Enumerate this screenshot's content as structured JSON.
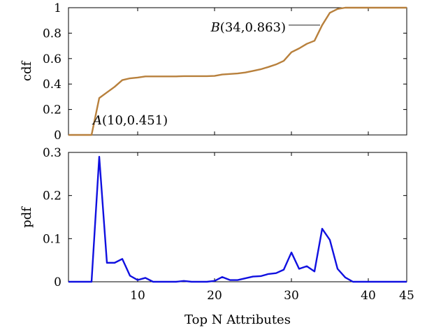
{
  "chart_data": [
    {
      "type": "line",
      "ylabel": "cdf",
      "xlim": [
        1,
        45
      ],
      "ylim": [
        0,
        1
      ],
      "xticks": [
        10,
        20,
        30,
        40,
        45
      ],
      "yticks": [
        0,
        0.2,
        0.4,
        0.6,
        0.8,
        1
      ],
      "ytick_labels": [
        "0",
        "0.2",
        "0.4",
        "0.6",
        "0.8",
        "1"
      ],
      "color": "#b8803c",
      "series": [
        {
          "x": [
            1,
            2,
            3,
            4,
            5,
            6,
            7,
            8,
            9,
            10,
            11,
            12,
            13,
            14,
            15,
            16,
            17,
            18,
            19,
            20,
            21,
            22,
            23,
            24,
            25,
            26,
            27,
            28,
            29,
            30,
            31,
            32,
            33,
            34,
            35,
            36,
            37,
            38,
            39,
            40,
            41,
            42,
            43,
            44,
            45
          ],
          "y": [
            0,
            0,
            0,
            0,
            0.29,
            0.334,
            0.378,
            0.431,
            0.445,
            0.451,
            0.46,
            0.46,
            0.46,
            0.46,
            0.46,
            0.462,
            0.462,
            0.462,
            0.462,
            0.464,
            0.475,
            0.479,
            0.483,
            0.491,
            0.503,
            0.516,
            0.534,
            0.554,
            0.582,
            0.65,
            0.68,
            0.716,
            0.74,
            0.863,
            0.96,
            0.99,
            1,
            1,
            1,
            1,
            1,
            1,
            1,
            1,
            1
          ]
        }
      ],
      "annotations": [
        {
          "label": "A",
          "coords": "(10, 0.451)",
          "x": 10,
          "y": 0.451
        },
        {
          "label": "B",
          "coords": "(34, 0.863)",
          "x": 34,
          "y": 0.863
        }
      ]
    },
    {
      "type": "line",
      "ylabel": "pdf",
      "xlabel": "Top N Attributes",
      "xlim": [
        1,
        45
      ],
      "ylim": [
        0,
        0.3
      ],
      "xticks": [
        10,
        20,
        30,
        40,
        45
      ],
      "yticks": [
        0,
        0.1,
        0.2,
        0.3
      ],
      "ytick_labels": [
        "0",
        "0.1",
        "0.2",
        "0.3"
      ],
      "color": "#1010e0",
      "series": [
        {
          "x": [
            1,
            2,
            3,
            4,
            5,
            6,
            7,
            8,
            9,
            10,
            11,
            12,
            13,
            14,
            15,
            16,
            17,
            18,
            19,
            20,
            21,
            22,
            23,
            24,
            25,
            26,
            27,
            28,
            29,
            30,
            31,
            32,
            33,
            34,
            35,
            36,
            37,
            38,
            39,
            40,
            41,
            42,
            43,
            44,
            45
          ],
          "y": [
            0,
            0,
            0,
            0,
            0.29,
            0.044,
            0.044,
            0.053,
            0.014,
            0.004,
            0.009,
            0,
            0,
            0,
            0,
            0.002,
            0,
            0,
            0,
            0.002,
            0.011,
            0.004,
            0.004,
            0.008,
            0.012,
            0.013,
            0.018,
            0.02,
            0.028,
            0.068,
            0.03,
            0.036,
            0.024,
            0.123,
            0.097,
            0.03,
            0.01,
            0,
            0,
            0,
            0,
            0,
            0,
            0,
            0
          ]
        }
      ]
    }
  ]
}
